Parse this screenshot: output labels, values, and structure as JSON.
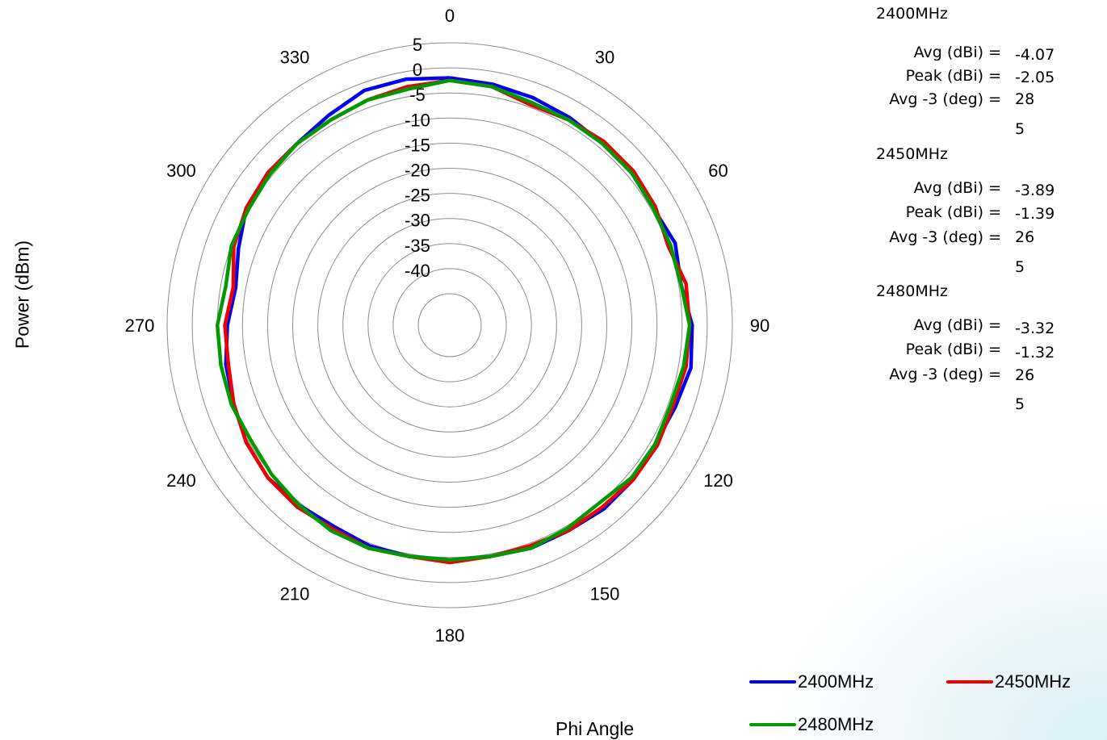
{
  "chart_data": {
    "type": "polar-line",
    "xlabel": "Phi  Angle",
    "ylabel": "Power (dBm)",
    "r_range": [
      -45,
      5
    ],
    "r_ticks": [
      5,
      0,
      -5,
      -10,
      -15,
      -20,
      -25,
      -30,
      -35,
      -40
    ],
    "angle_ticks": [
      0,
      30,
      60,
      90,
      120,
      150,
      180,
      210,
      240,
      270,
      300,
      330
    ],
    "angle_direction": "clockwise",
    "zero_position": "top",
    "grid": true,
    "legend": {
      "position": "bottom-right",
      "entries": [
        "2400MHz",
        "2450MHz",
        "2480MHz"
      ]
    },
    "series": [
      {
        "name": "2400MHz",
        "color": "#0000ee",
        "angles": [
          0,
          10,
          20,
          30,
          40,
          50,
          60,
          70,
          80,
          90,
          100,
          110,
          120,
          130,
          140,
          150,
          160,
          170,
          180,
          190,
          200,
          210,
          220,
          230,
          240,
          250,
          260,
          270,
          280,
          290,
          300,
          310,
          320,
          330,
          340,
          350
        ],
        "values": [
          -2.0,
          -2.5,
          -3.0,
          -3.5,
          -4.0,
          -4.0,
          -4.5,
          -3.5,
          -4.5,
          -3.0,
          -2.5,
          -3.5,
          -4.0,
          -3.5,
          -3.5,
          -4.0,
          -4.0,
          -4.5,
          -4.5,
          -4.5,
          -4.5,
          -5.0,
          -4.5,
          -4.0,
          -4.5,
          -5.5,
          -6.0,
          -7.0,
          -8.0,
          -6.5,
          -4.5,
          -4.0,
          -4.0,
          -3.0,
          -1.5,
          -1.5
        ]
      },
      {
        "name": "2450MHz",
        "color": "#ee0000",
        "angles": [
          0,
          10,
          20,
          30,
          40,
          50,
          60,
          70,
          80,
          90,
          100,
          110,
          120,
          130,
          140,
          150,
          160,
          170,
          180,
          190,
          200,
          210,
          220,
          230,
          240,
          250,
          260,
          270,
          280,
          290,
          300,
          310,
          320,
          330,
          340,
          350
        ],
        "values": [
          -2.5,
          -3.0,
          -4.5,
          -4.0,
          -3.5,
          -3.5,
          -4.0,
          -5.0,
          -3.5,
          -3.5,
          -3.5,
          -4.0,
          -3.5,
          -3.5,
          -4.0,
          -4.0,
          -4.5,
          -4.5,
          -4.0,
          -4.5,
          -4.0,
          -4.5,
          -4.0,
          -4.0,
          -4.5,
          -5.5,
          -6.5,
          -6.5,
          -7.5,
          -5.5,
          -4.5,
          -4.0,
          -4.0,
          -4.0,
          -3.5,
          -3.0
        ]
      },
      {
        "name": "2480MHz",
        "color": "#009a00",
        "angles": [
          0,
          10,
          20,
          30,
          40,
          50,
          60,
          70,
          80,
          90,
          100,
          110,
          120,
          130,
          140,
          150,
          160,
          170,
          180,
          190,
          200,
          210,
          220,
          230,
          240,
          250,
          260,
          270,
          280,
          290,
          300,
          310,
          320,
          330,
          340,
          350
        ],
        "values": [
          -2.5,
          -3.0,
          -4.0,
          -4.0,
          -4.0,
          -4.0,
          -4.5,
          -4.5,
          -4.5,
          -3.5,
          -4.0,
          -4.5,
          -4.0,
          -4.0,
          -5.0,
          -4.5,
          -4.0,
          -4.5,
          -4.5,
          -4.5,
          -4.0,
          -4.0,
          -4.5,
          -5.0,
          -5.5,
          -5.0,
          -5.0,
          -5.0,
          -6.0,
          -5.0,
          -5.0,
          -4.5,
          -4.0,
          -4.0,
          -3.5,
          -3.5
        ]
      }
    ]
  },
  "stats": [
    {
      "freq": "2400MHz",
      "avg_label": "Avg (dBi) =",
      "avg_value": "-4.07",
      "peak_label": "Peak (dBi) =",
      "peak_value": "-2.05",
      "avg3_label": "Avg -3 (deg) =",
      "avg3_value_line1": "28",
      "avg3_value_line2": "5"
    },
    {
      "freq": "2450MHz",
      "avg_label": "Avg (dBi) =",
      "avg_value": "-3.89",
      "peak_label": "Peak (dBi) =",
      "peak_value": "-1.39",
      "avg3_label": "Avg -3 (deg) =",
      "avg3_value_line1": "26",
      "avg3_value_line2": "5"
    },
    {
      "freq": "2480MHz",
      "avg_label": "Avg (dBi) =",
      "avg_value": "-3.32",
      "peak_label": "Peak (dBi) =",
      "peak_value": "-1.32",
      "avg3_label": "Avg -3 (deg) =",
      "avg3_value_line1": "26",
      "avg3_value_line2": "5"
    }
  ]
}
